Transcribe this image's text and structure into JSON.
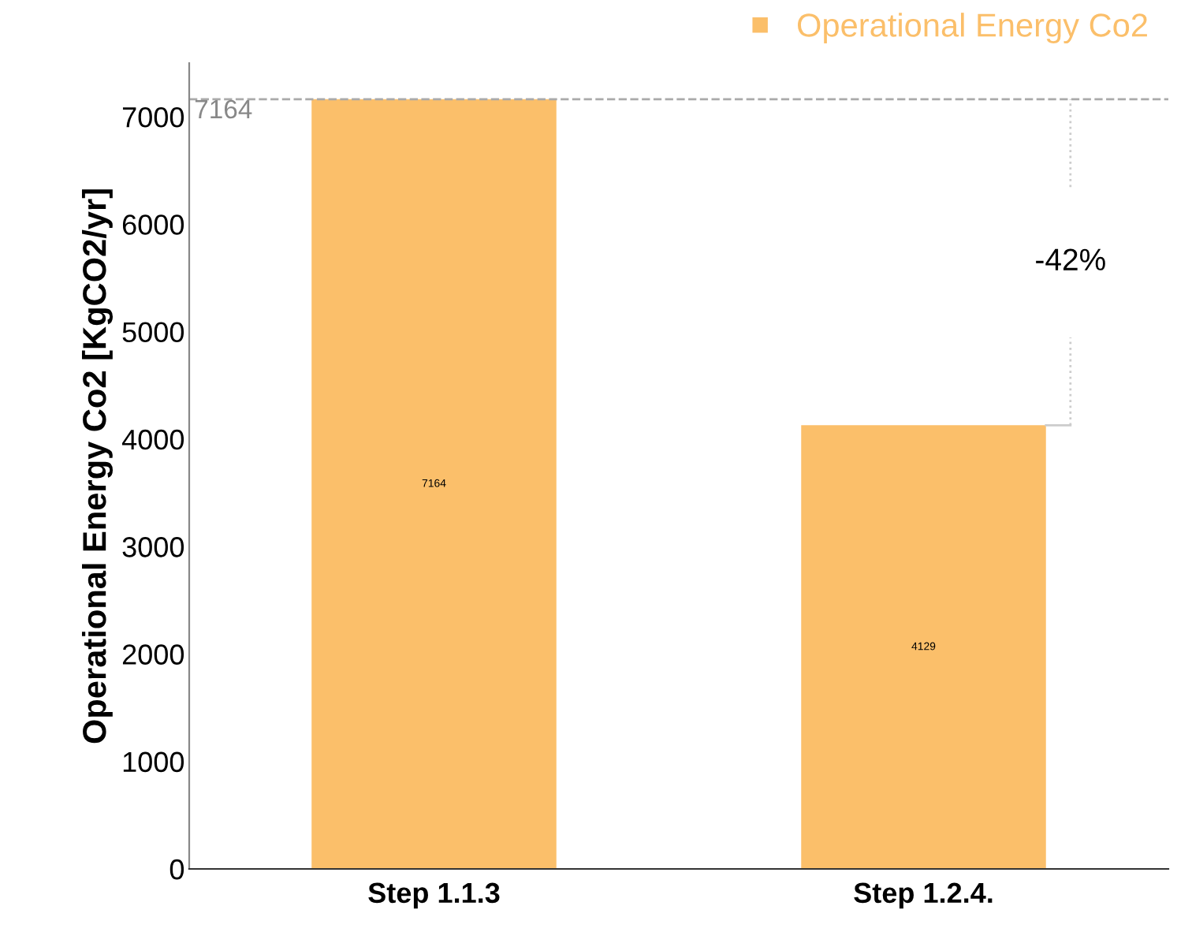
{
  "chart_data": {
    "type": "bar",
    "ylabel": "Operational Energy Co2 [KgCO2/yr]",
    "categories": [
      "Step 1.1.3",
      "Step 1.2.4."
    ],
    "series": [
      {
        "name": "Operational Energy Co2",
        "color": "#fbbf6a",
        "values": [
          7164,
          4129
        ]
      }
    ],
    "ylim": [
      0,
      7500
    ],
    "yticks": [
      0,
      1000,
      2000,
      3000,
      4000,
      5000,
      6000,
      7000
    ],
    "data_labels": true,
    "legend": "top right",
    "grid": false,
    "ref_lines": [
      {
        "axis": "y",
        "value": 7164,
        "label": "7164",
        "color": "#aaaaaa",
        "line_style": "dashed"
      }
    ],
    "annotations": [
      "-42%"
    ]
  }
}
